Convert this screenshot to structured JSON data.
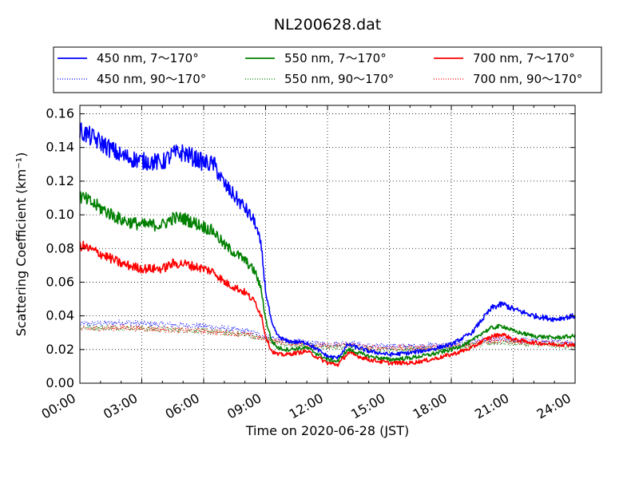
{
  "chart_data": {
    "type": "line",
    "title": "NL200628.dat",
    "xlabel": "Time on 2020-06-28 (JST)",
    "ylabel": "Scattering Coefficient (km⁻¹)",
    "xlim": [
      0,
      24
    ],
    "ylim": [
      0.0,
      0.165
    ],
    "x_unit": "hours",
    "xticks": [
      0,
      3,
      6,
      9,
      12,
      15,
      18,
      21,
      24
    ],
    "xtick_labels": [
      "00:00",
      "03:00",
      "06:00",
      "09:00",
      "12:00",
      "15:00",
      "18:00",
      "21:00",
      "24:00"
    ],
    "yticks": [
      0.0,
      0.02,
      0.04,
      0.06,
      0.08,
      0.1,
      0.12,
      0.14,
      0.16
    ],
    "ytick_labels": [
      "0.00",
      "0.02",
      "0.04",
      "0.06",
      "0.08",
      "0.10",
      "0.12",
      "0.14",
      "0.16"
    ],
    "grid": true,
    "legend": "top",
    "series": [
      {
        "name": "450 nm, 7～170°",
        "color": "#0000ff",
        "style": "solid",
        "x": [
          0,
          1,
          2,
          3,
          4,
          4.5,
          5,
          6,
          6.5,
          7,
          8,
          8.5,
          8.8,
          9.0,
          9.3,
          9.6,
          10,
          11,
          12,
          12.5,
          13,
          14,
          15,
          16,
          17,
          18,
          19,
          19.5,
          20,
          20.5,
          21,
          22,
          23,
          24
        ],
        "y": [
          0.15,
          0.143,
          0.135,
          0.132,
          0.131,
          0.136,
          0.137,
          0.131,
          0.13,
          0.118,
          0.104,
          0.095,
          0.08,
          0.055,
          0.035,
          0.028,
          0.025,
          0.024,
          0.016,
          0.015,
          0.023,
          0.019,
          0.017,
          0.018,
          0.02,
          0.023,
          0.03,
          0.038,
          0.045,
          0.047,
          0.044,
          0.04,
          0.038,
          0.04
        ]
      },
      {
        "name": "450 nm, 90～170°",
        "color": "#0000ff",
        "style": "dotted",
        "x": [
          0,
          2,
          4,
          6,
          8,
          9,
          10,
          11,
          12,
          13,
          14,
          15,
          16,
          18,
          20,
          21,
          22,
          24
        ],
        "y": [
          0.035,
          0.036,
          0.035,
          0.034,
          0.031,
          0.028,
          0.025,
          0.024,
          0.023,
          0.024,
          0.022,
          0.022,
          0.022,
          0.023,
          0.026,
          0.026,
          0.025,
          0.024
        ]
      },
      {
        "name": "550 nm, 7～170°",
        "color": "#008000",
        "style": "solid",
        "x": [
          0,
          1,
          2,
          3,
          4,
          4.5,
          5,
          6,
          6.5,
          7,
          8,
          8.5,
          8.8,
          9.0,
          9.3,
          9.6,
          10,
          11,
          12,
          12.5,
          13,
          14,
          15,
          16,
          17,
          18,
          19,
          19.5,
          20,
          20.5,
          21,
          22,
          23,
          24
        ],
        "y": [
          0.111,
          0.104,
          0.097,
          0.094,
          0.094,
          0.098,
          0.098,
          0.093,
          0.09,
          0.082,
          0.073,
          0.066,
          0.055,
          0.038,
          0.025,
          0.021,
          0.02,
          0.021,
          0.014,
          0.013,
          0.02,
          0.016,
          0.014,
          0.015,
          0.017,
          0.02,
          0.025,
          0.03,
          0.033,
          0.034,
          0.031,
          0.028,
          0.027,
          0.028
        ]
      },
      {
        "name": "550 nm, 90～170°",
        "color": "#008000",
        "style": "dotted",
        "x": [
          0,
          2,
          4,
          6,
          8,
          9,
          10,
          11,
          12,
          13,
          14,
          15,
          16,
          18,
          20,
          21,
          22,
          24
        ],
        "y": [
          0.033,
          0.033,
          0.032,
          0.031,
          0.029,
          0.026,
          0.023,
          0.022,
          0.021,
          0.022,
          0.02,
          0.02,
          0.02,
          0.021,
          0.024,
          0.024,
          0.023,
          0.022
        ]
      },
      {
        "name": "700 nm, 7～170°",
        "color": "#ff0000",
        "style": "solid",
        "x": [
          0,
          1,
          2,
          3,
          4,
          4.5,
          5,
          6,
          6.5,
          7,
          8,
          8.5,
          8.8,
          9.0,
          9.3,
          9.6,
          10,
          11,
          12,
          12.5,
          13,
          14,
          15,
          16,
          17,
          18,
          19,
          19.5,
          20,
          20.5,
          21,
          22,
          23,
          24
        ],
        "y": [
          0.082,
          0.077,
          0.071,
          0.068,
          0.068,
          0.071,
          0.071,
          0.068,
          0.066,
          0.06,
          0.054,
          0.048,
          0.04,
          0.028,
          0.019,
          0.017,
          0.017,
          0.019,
          0.012,
          0.011,
          0.018,
          0.014,
          0.012,
          0.012,
          0.014,
          0.017,
          0.021,
          0.025,
          0.028,
          0.029,
          0.026,
          0.024,
          0.023,
          0.023
        ]
      },
      {
        "name": "700 nm, 90～170°",
        "color": "#ff0000",
        "style": "dotted",
        "x": [
          0,
          2,
          4,
          6,
          8,
          9,
          10,
          11,
          12,
          13,
          14,
          15,
          16,
          18,
          20,
          21,
          22,
          24
        ],
        "y": [
          0.032,
          0.033,
          0.032,
          0.031,
          0.029,
          0.026,
          0.024,
          0.023,
          0.022,
          0.023,
          0.021,
          0.021,
          0.021,
          0.022,
          0.025,
          0.025,
          0.024,
          0.023
        ]
      }
    ]
  }
}
